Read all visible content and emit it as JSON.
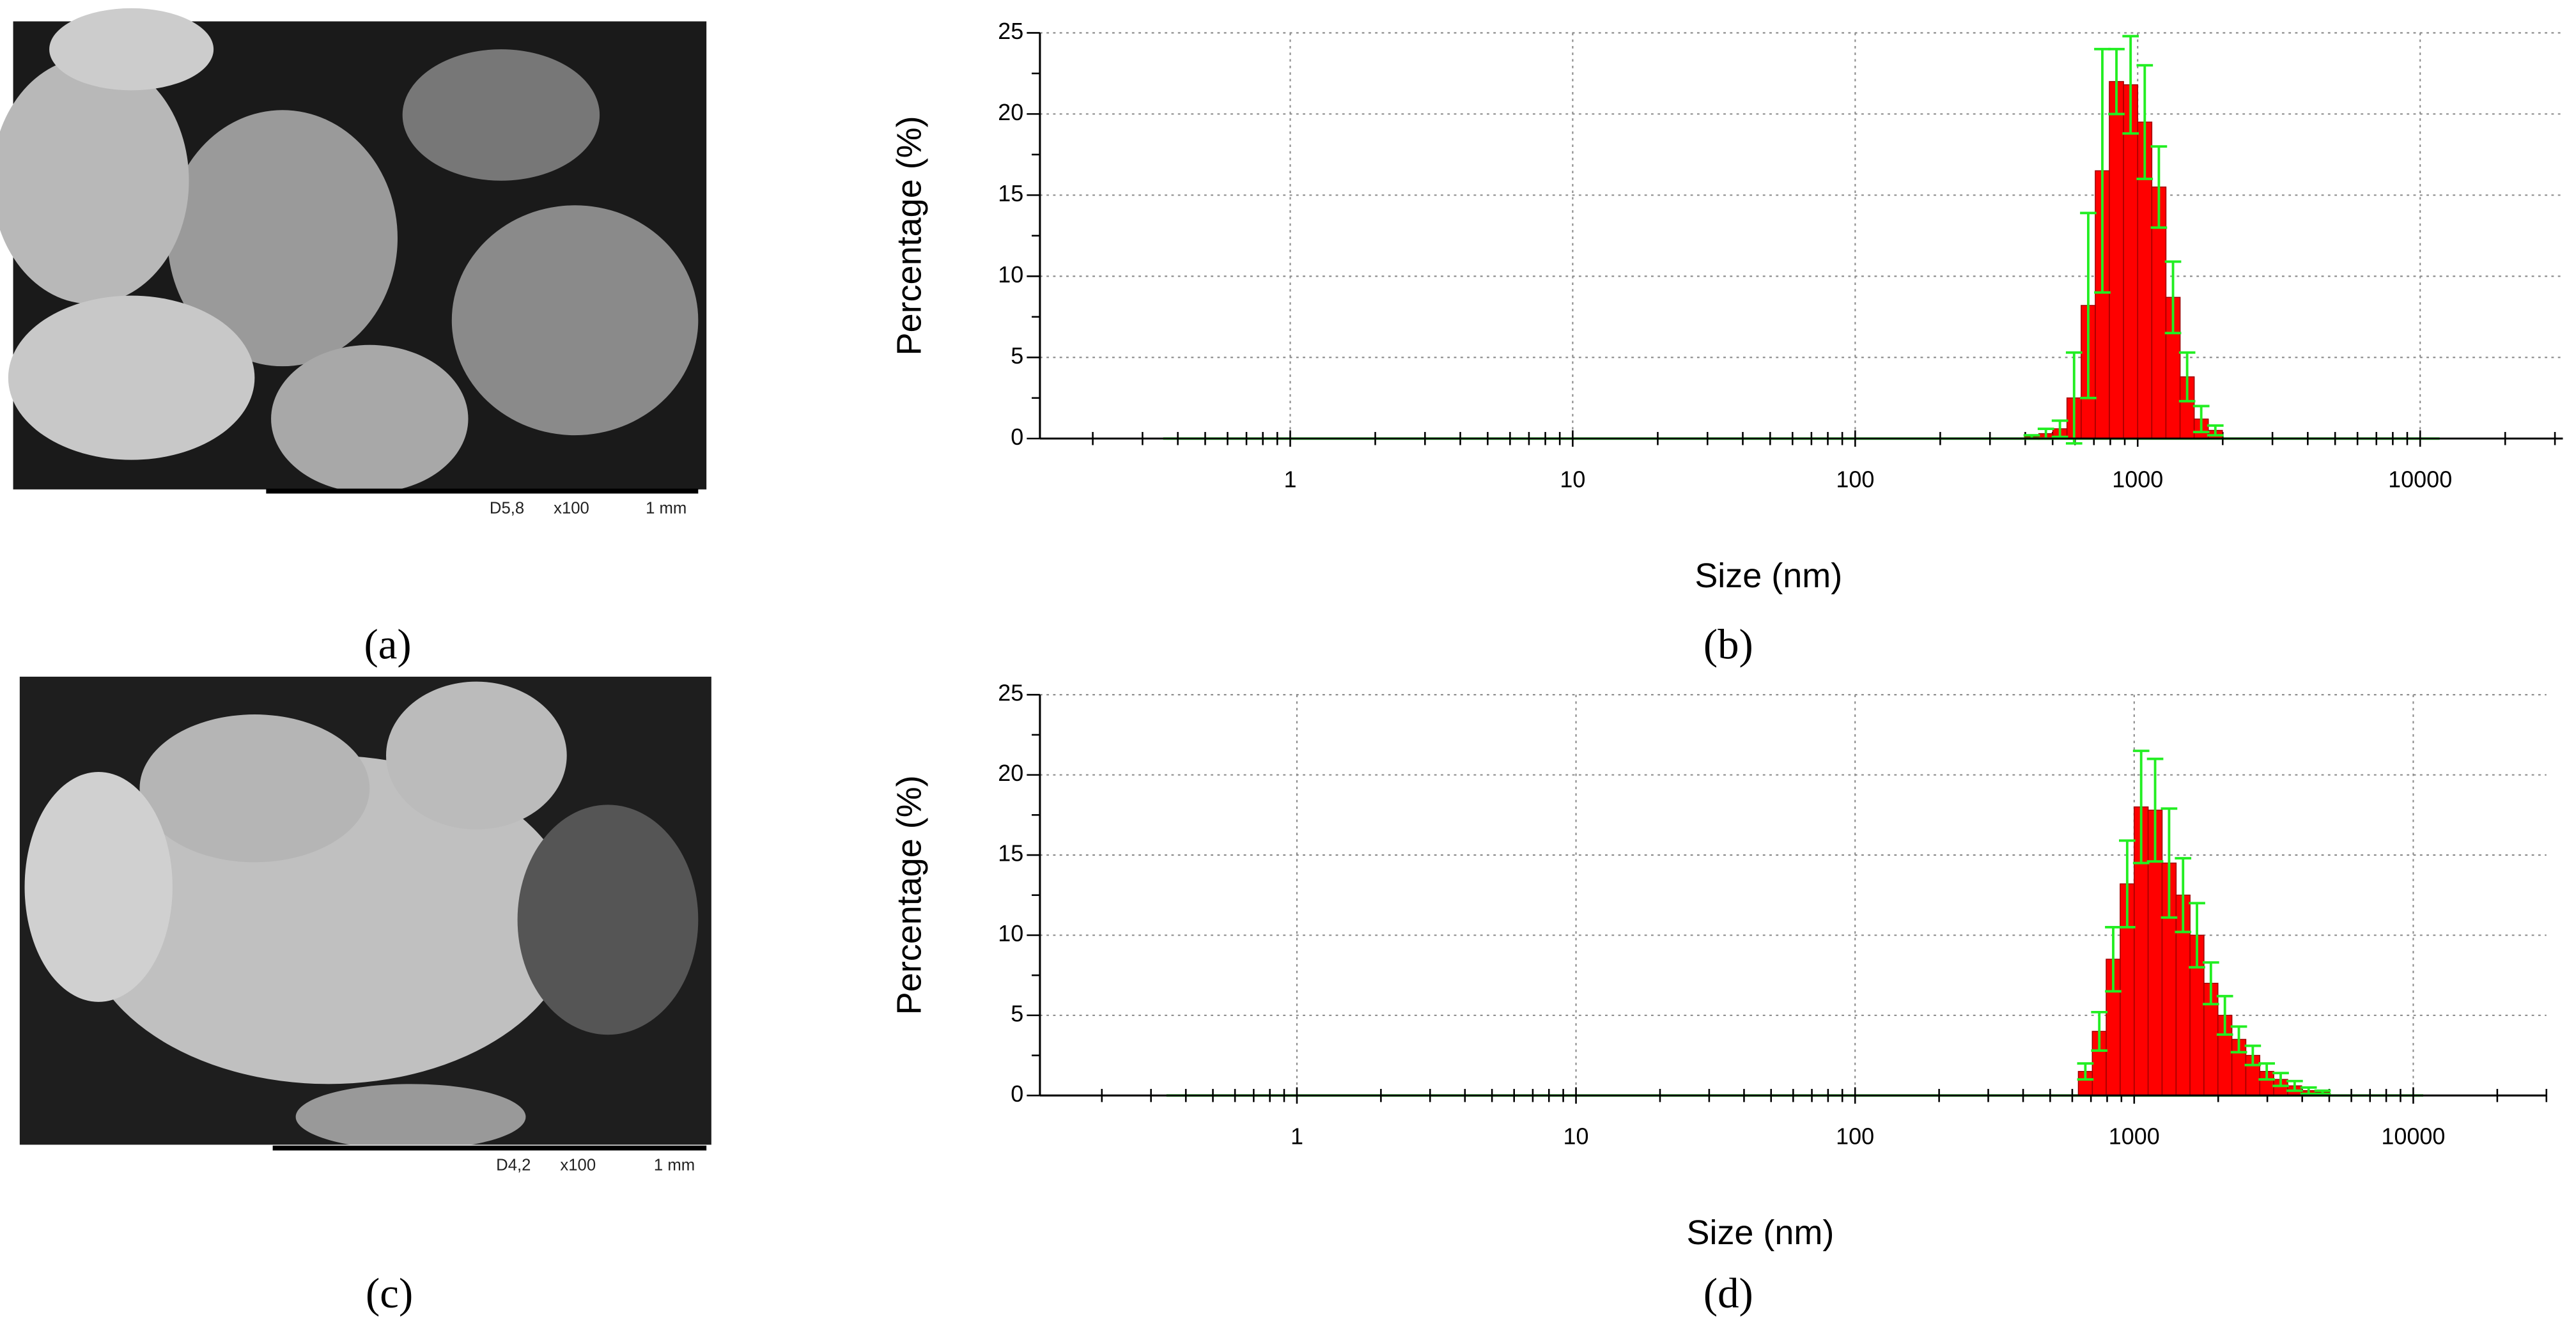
{
  "chart_data": [
    {
      "type": "histogram",
      "caption": "(b)",
      "xlabel": "Size (nm)",
      "ylabel": "Percentage (%)",
      "xscale": "log",
      "xlim": [
        0.13,
        32000
      ],
      "xticks": [
        1,
        10,
        100,
        1000,
        10000
      ],
      "ylim": [
        0,
        25
      ],
      "yticks": [
        0,
        5,
        10,
        15,
        20,
        25
      ],
      "grid": true,
      "color": "#ff0000",
      "edge_color": "#a00000",
      "error_color": "#22ee22",
      "bins": [
        398,
        447,
        501,
        562,
        631,
        708,
        794,
        891,
        1000,
        1122,
        1259,
        1413,
        1585,
        1778,
        1995
      ],
      "values": [
        0.1,
        0.3,
        0.6,
        2.5,
        8.2,
        16.5,
        22,
        21.8,
        19.5,
        15.5,
        8.7,
        3.8,
        1.2,
        0.5
      ],
      "errors": [
        0.1,
        0.3,
        0.5,
        2.8,
        5.7,
        7.5,
        2,
        3,
        3.5,
        2.5,
        2.2,
        1.5,
        0.8,
        0.3
      ]
    },
    {
      "type": "histogram",
      "caption": "(d)",
      "xlabel": "Size (nm)",
      "ylabel": "Percentage (%)",
      "xscale": "log",
      "xlim": [
        0.12,
        30000
      ],
      "xticks": [
        1,
        10,
        100,
        1000,
        10000
      ],
      "ylim": [
        0,
        25
      ],
      "yticks": [
        0,
        5,
        10,
        15,
        20,
        25
      ],
      "grid": true,
      "color": "#ff0000",
      "edge_color": "#a00000",
      "error_color": "#22ee22",
      "bins": [
        631,
        708,
        794,
        891,
        1000,
        1122,
        1259,
        1413,
        1585,
        1778,
        1995,
        2239,
        2512,
        2818,
        3162,
        3548,
        3981,
        4467,
        5012
      ],
      "values": [
        1.5,
        4,
        8.5,
        13.2,
        18,
        17.8,
        14.5,
        12.5,
        10,
        7,
        5,
        3.5,
        2.5,
        1.5,
        1,
        0.6,
        0.3,
        0.2
      ],
      "errors": [
        0.5,
        1.2,
        2,
        2.7,
        3.5,
        3.2,
        3.4,
        2.3,
        2,
        1.3,
        1.2,
        0.8,
        0.6,
        0.5,
        0.4,
        0.3,
        0.2,
        0.1
      ]
    }
  ],
  "images": [
    {
      "caption": "(a)",
      "scale_text": [
        "D5,8",
        "x100",
        "1 mm"
      ]
    },
    {
      "caption": "(c)",
      "scale_text": [
        "D4,2",
        "x100",
        "1 mm"
      ]
    }
  ]
}
